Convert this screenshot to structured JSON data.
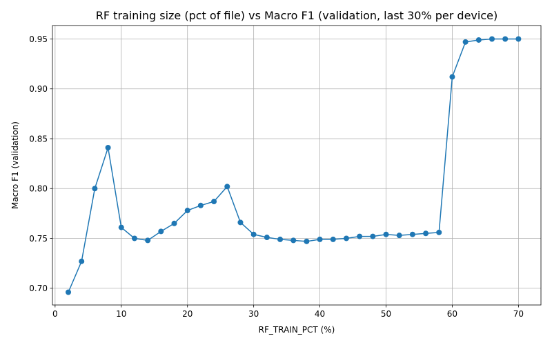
{
  "chart_data": {
    "type": "line",
    "title": "RF training size (pct of file) vs Macro F1 (validation, last 30% per device)",
    "xlabel": "RF_TRAIN_PCT (%)",
    "ylabel": "Macro F1 (validation)",
    "xlim": [
      -0.4,
      73.4
    ],
    "ylim": [
      0.6832,
      0.9635
    ],
    "xticks": [
      0,
      10,
      20,
      30,
      40,
      50,
      60,
      70
    ],
    "yticks": [
      0.7,
      0.75,
      0.8,
      0.85,
      0.9,
      0.95
    ],
    "xtick_labels": [
      "0",
      "10",
      "20",
      "30",
      "40",
      "50",
      "60",
      "70"
    ],
    "ytick_labels": [
      "0.70",
      "0.75",
      "0.80",
      "0.85",
      "0.90",
      "0.95"
    ],
    "grid": true,
    "color": "#1f77b4",
    "marker": "circle",
    "series": [
      {
        "x": [
          2,
          4,
          6,
          8,
          10,
          12,
          14,
          16,
          18,
          20,
          22,
          24,
          26,
          28,
          30,
          32,
          34,
          36,
          38,
          40,
          42,
          44,
          46,
          48,
          50,
          52,
          54,
          56,
          58,
          60,
          62,
          64,
          66,
          68,
          70
        ],
        "y": [
          0.696,
          0.727,
          0.8,
          0.841,
          0.761,
          0.75,
          0.748,
          0.757,
          0.765,
          0.778,
          0.783,
          0.787,
          0.802,
          0.766,
          0.754,
          0.751,
          0.749,
          0.748,
          0.747,
          0.749,
          0.749,
          0.75,
          0.752,
          0.752,
          0.754,
          0.753,
          0.754,
          0.755,
          0.756,
          0.912,
          0.947,
          0.949,
          0.95,
          0.95,
          0.95
        ]
      }
    ]
  }
}
